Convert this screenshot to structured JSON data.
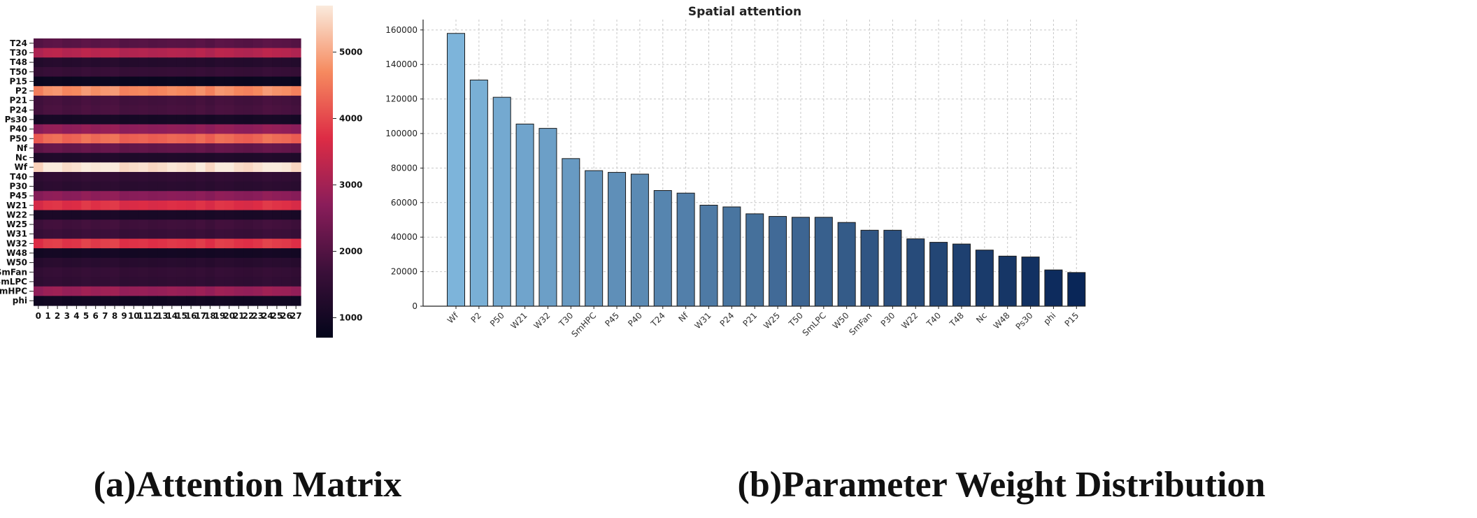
{
  "captions": {
    "left": "(a)Attention Matrix",
    "right": "(b)Parameter Weight Distribution"
  },
  "chart_data": [
    {
      "type": "heatmap",
      "title": "",
      "rows": [
        "T24",
        "T30",
        "T48",
        "T50",
        "P15",
        "P2",
        "P21",
        "P24",
        "Ps30",
        "P40",
        "P50",
        "Nf",
        "Nc",
        "Wf",
        "T40",
        "P30",
        "P45",
        "W21",
        "W22",
        "W25",
        "W31",
        "W32",
        "W48",
        "W50",
        "SmFan",
        "SmLPC",
        "SmHPC",
        "phi"
      ],
      "columns": [
        "0",
        "1",
        "2",
        "3",
        "4",
        "5",
        "6",
        "7",
        "8",
        "9",
        "10",
        "11",
        "12",
        "13",
        "14",
        "15",
        "16",
        "17",
        "18",
        "19",
        "20",
        "21",
        "22",
        "23",
        "24",
        "25",
        "26",
        "27"
      ],
      "row_values": [
        2050,
        3200,
        1300,
        1600,
        850,
        4700,
        1800,
        1850,
        1050,
        2750,
        4300,
        2200,
        1200,
        5600,
        1500,
        1400,
        2700,
        3700,
        1100,
        1750,
        1650,
        3800,
        1000,
        1350,
        1550,
        1500,
        2850,
        950
      ],
      "colorbar": {
        "min": 700,
        "max": 5700,
        "ticks": [
          1000,
          2000,
          3000,
          4000,
          5000
        ]
      }
    },
    {
      "type": "bar",
      "title": "Spatial attention",
      "xlabel": "",
      "ylabel": "",
      "categories": [
        "Wf",
        "P2",
        "P50",
        "W21",
        "W32",
        "T30",
        "SmHPC",
        "P45",
        "P40",
        "T24",
        "Nf",
        "W31",
        "P24",
        "P21",
        "W25",
        "T50",
        "SmLPC",
        "W50",
        "SmFan",
        "P30",
        "W22",
        "T40",
        "T48",
        "Nc",
        "W48",
        "Ps30",
        "phi",
        "P15"
      ],
      "values": [
        158000,
        131000,
        121000,
        105500,
        103000,
        85500,
        78500,
        77500,
        76500,
        67000,
        65500,
        58500,
        57500,
        53500,
        52000,
        51500,
        51500,
        48500,
        44000,
        44000,
        39000,
        37000,
        36000,
        32500,
        29000,
        28500,
        21000,
        19500
      ],
      "ylim": [
        0,
        166000
      ],
      "yticks": [
        0,
        20000,
        40000,
        60000,
        80000,
        100000,
        120000,
        140000,
        160000
      ],
      "grid": true
    }
  ]
}
